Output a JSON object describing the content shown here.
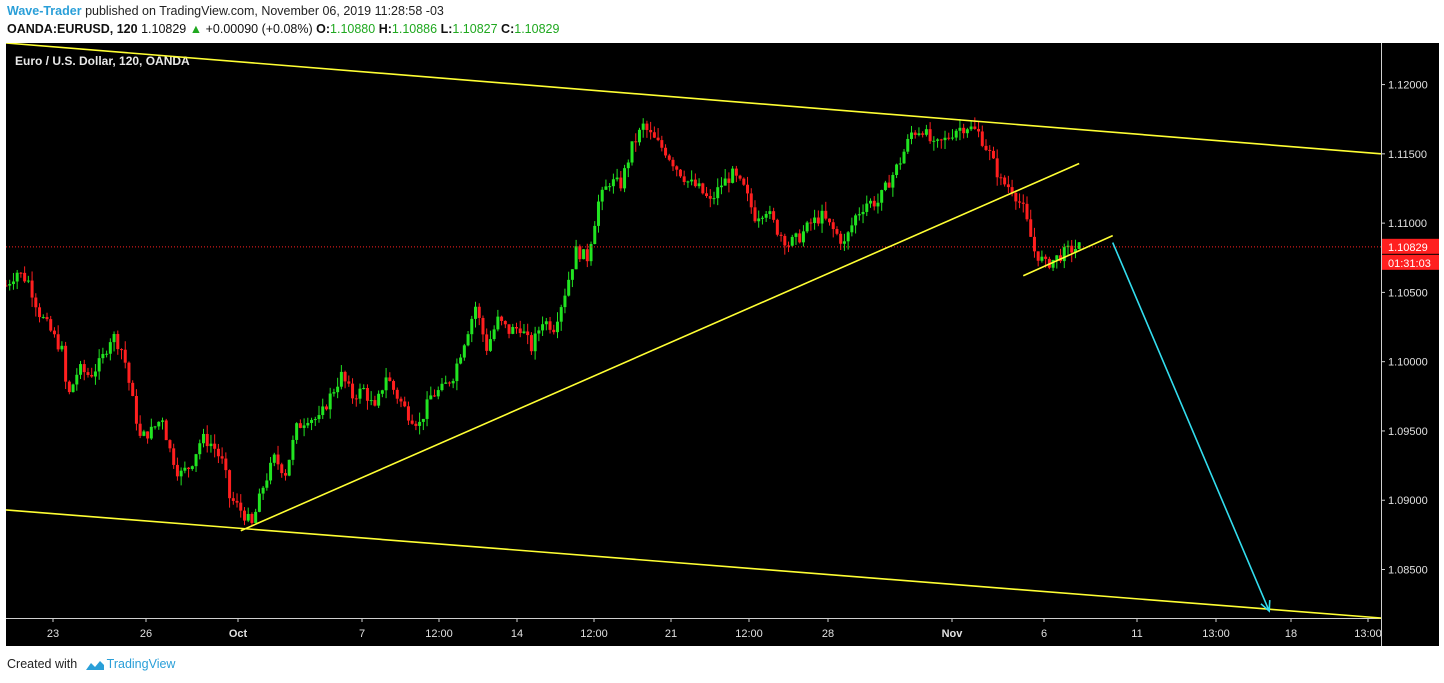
{
  "header": {
    "author": "Wave-Trader",
    "published_text": "published on TradingView.com, November 06, 2019 11:28:58 -03",
    "symbol": "OANDA:EURUSD, 120",
    "last": "1.10829",
    "change_arrow": "▲",
    "change": "+0.00090 (+0.08%)",
    "o_label": "O:",
    "o_value": "1.10880",
    "h_label": "H:",
    "h_value": "1.10886",
    "l_label": "L:",
    "l_value": "1.10827",
    "c_label": "C:",
    "c_value": "1.10829"
  },
  "chart_data": {
    "type": "candlestick",
    "title": "Euro / U.S. Dollar, 120, OANDA",
    "y_range": [
      1.0815,
      1.123
    ],
    "y_ticks": [
      "1.12000",
      "1.11500",
      "1.11000",
      "1.10500",
      "1.10000",
      "1.09500",
      "1.09000",
      "1.08500"
    ],
    "x_ticks": [
      "23",
      "26",
      "Oct",
      "7",
      "12:00",
      "14",
      "12:00",
      "21",
      "12:00",
      "28",
      "Nov",
      "6",
      "11",
      "13:00",
      "18",
      "13:00"
    ],
    "last_price_label": "1.10829",
    "countdown_label": "01:31:03",
    "colors": {
      "background": "#000000",
      "up": "#21e421",
      "down": "#ff1f1f",
      "trendline": "#ffff33",
      "arrow": "#33ddee",
      "price_line": "#ff1f1f"
    },
    "price_path": [
      [
        0,
        1.1055
      ],
      [
        2,
        1.1065
      ],
      [
        4,
        1.1058
      ],
      [
        6,
        1.1035
      ],
      [
        8,
        1.1022
      ],
      [
        10,
        1.1008
      ],
      [
        11,
        1.0973
      ],
      [
        13,
        1.0995
      ],
      [
        15,
        1.099
      ],
      [
        17,
        1.1
      ],
      [
        19,
        1.102
      ],
      [
        21,
        1.1007
      ],
      [
        22,
        1.0985
      ],
      [
        24,
        1.0945
      ],
      [
        26,
        1.095
      ],
      [
        28,
        1.096
      ],
      [
        29,
        1.094
      ],
      [
        31,
        1.0918
      ],
      [
        33,
        1.0925
      ],
      [
        35,
        1.0945
      ],
      [
        37,
        1.094
      ],
      [
        39,
        1.0925
      ],
      [
        40,
        1.0902
      ],
      [
        42,
        1.0893
      ],
      [
        44,
        1.0882
      ],
      [
        46,
        1.091
      ],
      [
        48,
        1.093
      ],
      [
        50,
        1.092
      ],
      [
        52,
        1.0952
      ],
      [
        54,
        1.096
      ],
      [
        56,
        1.0958
      ],
      [
        58,
        1.0975
      ],
      [
        60,
        1.099
      ],
      [
        62,
        1.0975
      ],
      [
        64,
        1.098
      ],
      [
        66,
        1.0965
      ],
      [
        68,
        1.099
      ],
      [
        70,
        1.0975
      ],
      [
        72,
        1.0962
      ],
      [
        74,
        1.0955
      ],
      [
        76,
        1.0975
      ],
      [
        78,
        1.098
      ],
      [
        80,
        1.099
      ],
      [
        82,
        1.1015
      ],
      [
        84,
        1.104
      ],
      [
        86,
        1.101
      ],
      [
        88,
        1.103
      ],
      [
        90,
        1.1022
      ],
      [
        92,
        1.1025
      ],
      [
        94,
        1.101
      ],
      [
        96,
        1.103
      ],
      [
        98,
        1.1025
      ],
      [
        100,
        1.105
      ],
      [
        102,
        1.108
      ],
      [
        104,
        1.1075
      ],
      [
        106,
        1.1115
      ],
      [
        108,
        1.113
      ],
      [
        110,
        1.1128
      ],
      [
        112,
        1.1155
      ],
      [
        114,
        1.117
      ],
      [
        116,
        1.116
      ],
      [
        118,
        1.1152
      ],
      [
        120,
        1.114
      ],
      [
        122,
        1.113
      ],
      [
        124,
        1.1125
      ],
      [
        126,
        1.1115
      ],
      [
        128,
        1.1128
      ],
      [
        130,
        1.1135
      ],
      [
        132,
        1.1125
      ],
      [
        134,
        1.1105
      ],
      [
        136,
        1.111
      ],
      [
        138,
        1.1095
      ],
      [
        140,
        1.1085
      ],
      [
        142,
        1.109
      ],
      [
        144,
        1.11
      ],
      [
        146,
        1.1105
      ],
      [
        148,
        1.1095
      ],
      [
        150,
        1.1085
      ],
      [
        152,
        1.1105
      ],
      [
        154,
        1.1115
      ],
      [
        156,
        1.1115
      ],
      [
        158,
        1.113
      ],
      [
        160,
        1.1145
      ],
      [
        162,
        1.1165
      ],
      [
        164,
        1.1168
      ],
      [
        166,
        1.1155
      ],
      [
        168,
        1.116
      ],
      [
        170,
        1.1168
      ],
      [
        172,
        1.117
      ],
      [
        174,
        1.1165
      ],
      [
        176,
        1.115
      ],
      [
        178,
        1.113
      ],
      [
        180,
        1.1125
      ],
      [
        182,
        1.111
      ],
      [
        184,
        1.108
      ],
      [
        186,
        1.107
      ],
      [
        188,
        1.1075
      ],
      [
        190,
        1.108
      ],
      [
        192,
        1.1083
      ]
    ],
    "trendlines": [
      {
        "name": "upper-channel",
        "from": [
          0,
          1.123
        ],
        "to": [
          246,
          1.115
        ]
      },
      {
        "name": "lower-channel",
        "from": [
          0,
          1.0893
        ],
        "to": [
          246,
          1.0815
        ]
      },
      {
        "name": "rising-support",
        "from": [
          42,
          1.0878
        ],
        "to": [
          192,
          1.1143
        ]
      },
      {
        "name": "small-support",
        "from": [
          182,
          1.1062
        ],
        "to": [
          198,
          1.1091
        ]
      }
    ],
    "projection_arrow": {
      "from": [
        198,
        1.1086
      ],
      "to": [
        226,
        1.082
      ]
    },
    "x_range": [
      0,
      246
    ]
  },
  "footer": {
    "created_with": "Created with",
    "brand": "TradingView"
  }
}
